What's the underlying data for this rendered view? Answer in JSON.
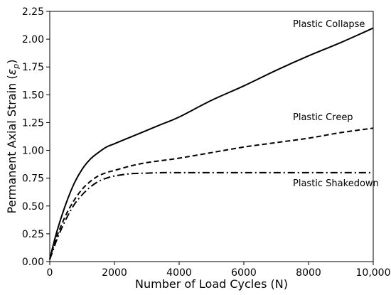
{
  "chart_data": {
    "type": "line",
    "title": "",
    "xlabel": "Number of Load Cycles (N)",
    "ylabel_main": "Permanent Axial Strain (",
    "ylabel_symbol": "ε",
    "ylabel_subscript": "p",
    "ylabel_close": ")",
    "xlim": [
      0,
      10000
    ],
    "ylim": [
      0,
      2.25
    ],
    "grid": false,
    "legend": "none",
    "x_ticks": [
      0,
      2000,
      4000,
      6000,
      8000,
      10000
    ],
    "x_tick_labels": [
      "0",
      "2000",
      "4000",
      "6000",
      "8000",
      "10,000"
    ],
    "y_ticks": [
      0,
      0.25,
      0.5,
      0.75,
      1.0,
      1.25,
      1.5,
      1.75,
      2.0,
      2.25
    ],
    "y_tick_labels": [
      "0.00",
      "0.25",
      "0.50",
      "0.75",
      "1.00",
      "1.25",
      "1.50",
      "1.75",
      "2.00",
      "2.25"
    ],
    "series": [
      {
        "name": "Plastic Collapse",
        "line_style": "solid",
        "color": "#000000",
        "x": [
          0,
          100,
          250,
          500,
          750,
          1000,
          1250,
          1500,
          1750,
          2000,
          2500,
          3000,
          3500,
          4000,
          5000,
          6000,
          7000,
          8000,
          9000,
          10000
        ],
        "y": [
          0.02,
          0.14,
          0.3,
          0.52,
          0.7,
          0.83,
          0.92,
          0.98,
          1.03,
          1.06,
          1.12,
          1.18,
          1.24,
          1.3,
          1.45,
          1.58,
          1.72,
          1.85,
          1.97,
          2.1
        ]
      },
      {
        "name": "Plastic Creep",
        "line_style": "dashed",
        "color": "#000000",
        "x": [
          0,
          100,
          250,
          500,
          750,
          1000,
          1250,
          1500,
          1750,
          2000,
          2500,
          3000,
          3500,
          4000,
          5000,
          6000,
          7000,
          8000,
          9000,
          10000
        ],
        "y": [
          0.02,
          0.12,
          0.25,
          0.42,
          0.55,
          0.65,
          0.72,
          0.77,
          0.8,
          0.82,
          0.86,
          0.89,
          0.91,
          0.93,
          0.98,
          1.03,
          1.07,
          1.11,
          1.16,
          1.2
        ]
      },
      {
        "name": "Plastic Shakedown",
        "line_style": "dash-dot",
        "color": "#000000",
        "x": [
          0,
          100,
          250,
          500,
          750,
          1000,
          1250,
          1500,
          1750,
          2000,
          2500,
          3000,
          3500,
          4000,
          5000,
          6000,
          7000,
          8000,
          9000,
          10000
        ],
        "y": [
          0.02,
          0.1,
          0.22,
          0.38,
          0.51,
          0.6,
          0.67,
          0.72,
          0.75,
          0.77,
          0.79,
          0.795,
          0.8,
          0.8,
          0.8,
          0.8,
          0.8,
          0.8,
          0.8,
          0.8
        ]
      }
    ]
  }
}
